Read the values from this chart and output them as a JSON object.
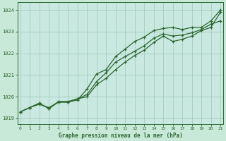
{
  "xlabel": "Graphe pression niveau de la mer (hPa)",
  "background_color": "#c8e8d8",
  "plot_bg_color": "#c8e8e0",
  "grid_color": "#a0c8b8",
  "line_color": "#2d6630",
  "marker_color": "#2d6630",
  "xlim": [
    -0.3,
    21.3
  ],
  "ylim": [
    1018.75,
    1024.35
  ],
  "yticks": [
    1019,
    1020,
    1021,
    1022,
    1023,
    1024
  ],
  "xticks": [
    0,
    1,
    2,
    3,
    4,
    5,
    6,
    7,
    8,
    9,
    10,
    11,
    12,
    13,
    14,
    15,
    16,
    17,
    18,
    19,
    20,
    21
  ],
  "series1_x": [
    0,
    1,
    2,
    3,
    4,
    5,
    6,
    7,
    8,
    9,
    10,
    11,
    12,
    13,
    14,
    15,
    16,
    17,
    18,
    19,
    20,
    21
  ],
  "series1_y": [
    1019.3,
    1019.5,
    1019.7,
    1019.45,
    1019.75,
    1019.75,
    1019.9,
    1020.0,
    1020.55,
    1020.85,
    1021.25,
    1021.6,
    1021.9,
    1022.15,
    1022.5,
    1022.8,
    1022.55,
    1022.65,
    1022.8,
    1023.05,
    1023.2,
    1023.9
  ],
  "series2_x": [
    0,
    1,
    2,
    3,
    4,
    5,
    6,
    7,
    8,
    9,
    10,
    11,
    12,
    13,
    14,
    15,
    16,
    17,
    18,
    19,
    20,
    21
  ],
  "series2_y": [
    1019.3,
    1019.5,
    1019.65,
    1019.5,
    1019.75,
    1019.75,
    1019.85,
    1020.35,
    1021.05,
    1021.25,
    1021.85,
    1022.2,
    1022.55,
    1022.75,
    1023.05,
    1023.15,
    1023.2,
    1023.1,
    1023.2,
    1023.2,
    1023.5,
    1024.0
  ],
  "series3_x": [
    0,
    1,
    2,
    3,
    4,
    5,
    6,
    7,
    8,
    9,
    10,
    11,
    12,
    13,
    14,
    15,
    16,
    17,
    18,
    19,
    20,
    21
  ],
  "series3_y": [
    1019.3,
    1019.5,
    1019.7,
    1019.45,
    1019.78,
    1019.78,
    1019.9,
    1020.1,
    1020.7,
    1021.1,
    1021.6,
    1021.85,
    1022.1,
    1022.35,
    1022.7,
    1022.9,
    1022.8,
    1022.85,
    1022.95,
    1023.1,
    1023.35,
    1023.5
  ]
}
